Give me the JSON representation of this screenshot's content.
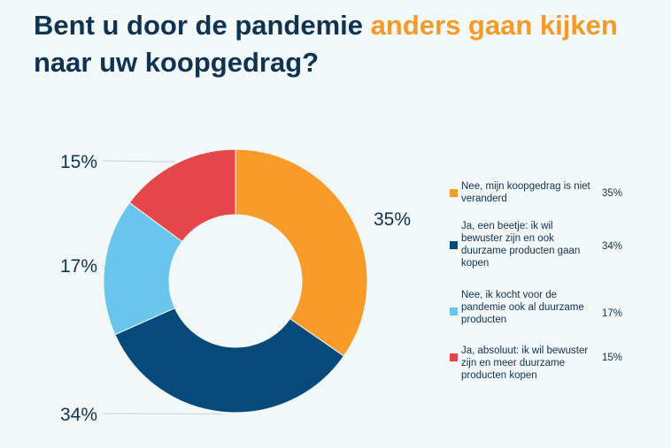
{
  "title": {
    "part1": "Bent u door de pandemie ",
    "highlight": "anders gaan kijken",
    "part2": " naar uw koopgedrag?"
  },
  "colors": {
    "title": "#0f3350",
    "highlight": "#f59a27",
    "background": "#f2f7f7"
  },
  "chart_data": {
    "type": "pie",
    "variant": "donut",
    "legend_position": "right",
    "series": [
      {
        "label": "Nee, mijn koopgedrag is niet veranderd",
        "value": 35,
        "display": "35%",
        "color": "#f89b29"
      },
      {
        "label": "Ja, een beetje: ik wil bewuster zijn en ook duurzame producten gaan kopen",
        "value": 34,
        "display": "34%",
        "color": "#054a7a"
      },
      {
        "label": "Nee, ik kocht voor de pandemie ook al duurzame producten",
        "value": 17,
        "display": "17%",
        "color": "#6ac5ec"
      },
      {
        "label": "Ja, absoluut: ik wil bewuster zijn en meer duurzame producten kopen",
        "value": 15,
        "display": "15%",
        "color": "#e54649"
      }
    ]
  }
}
